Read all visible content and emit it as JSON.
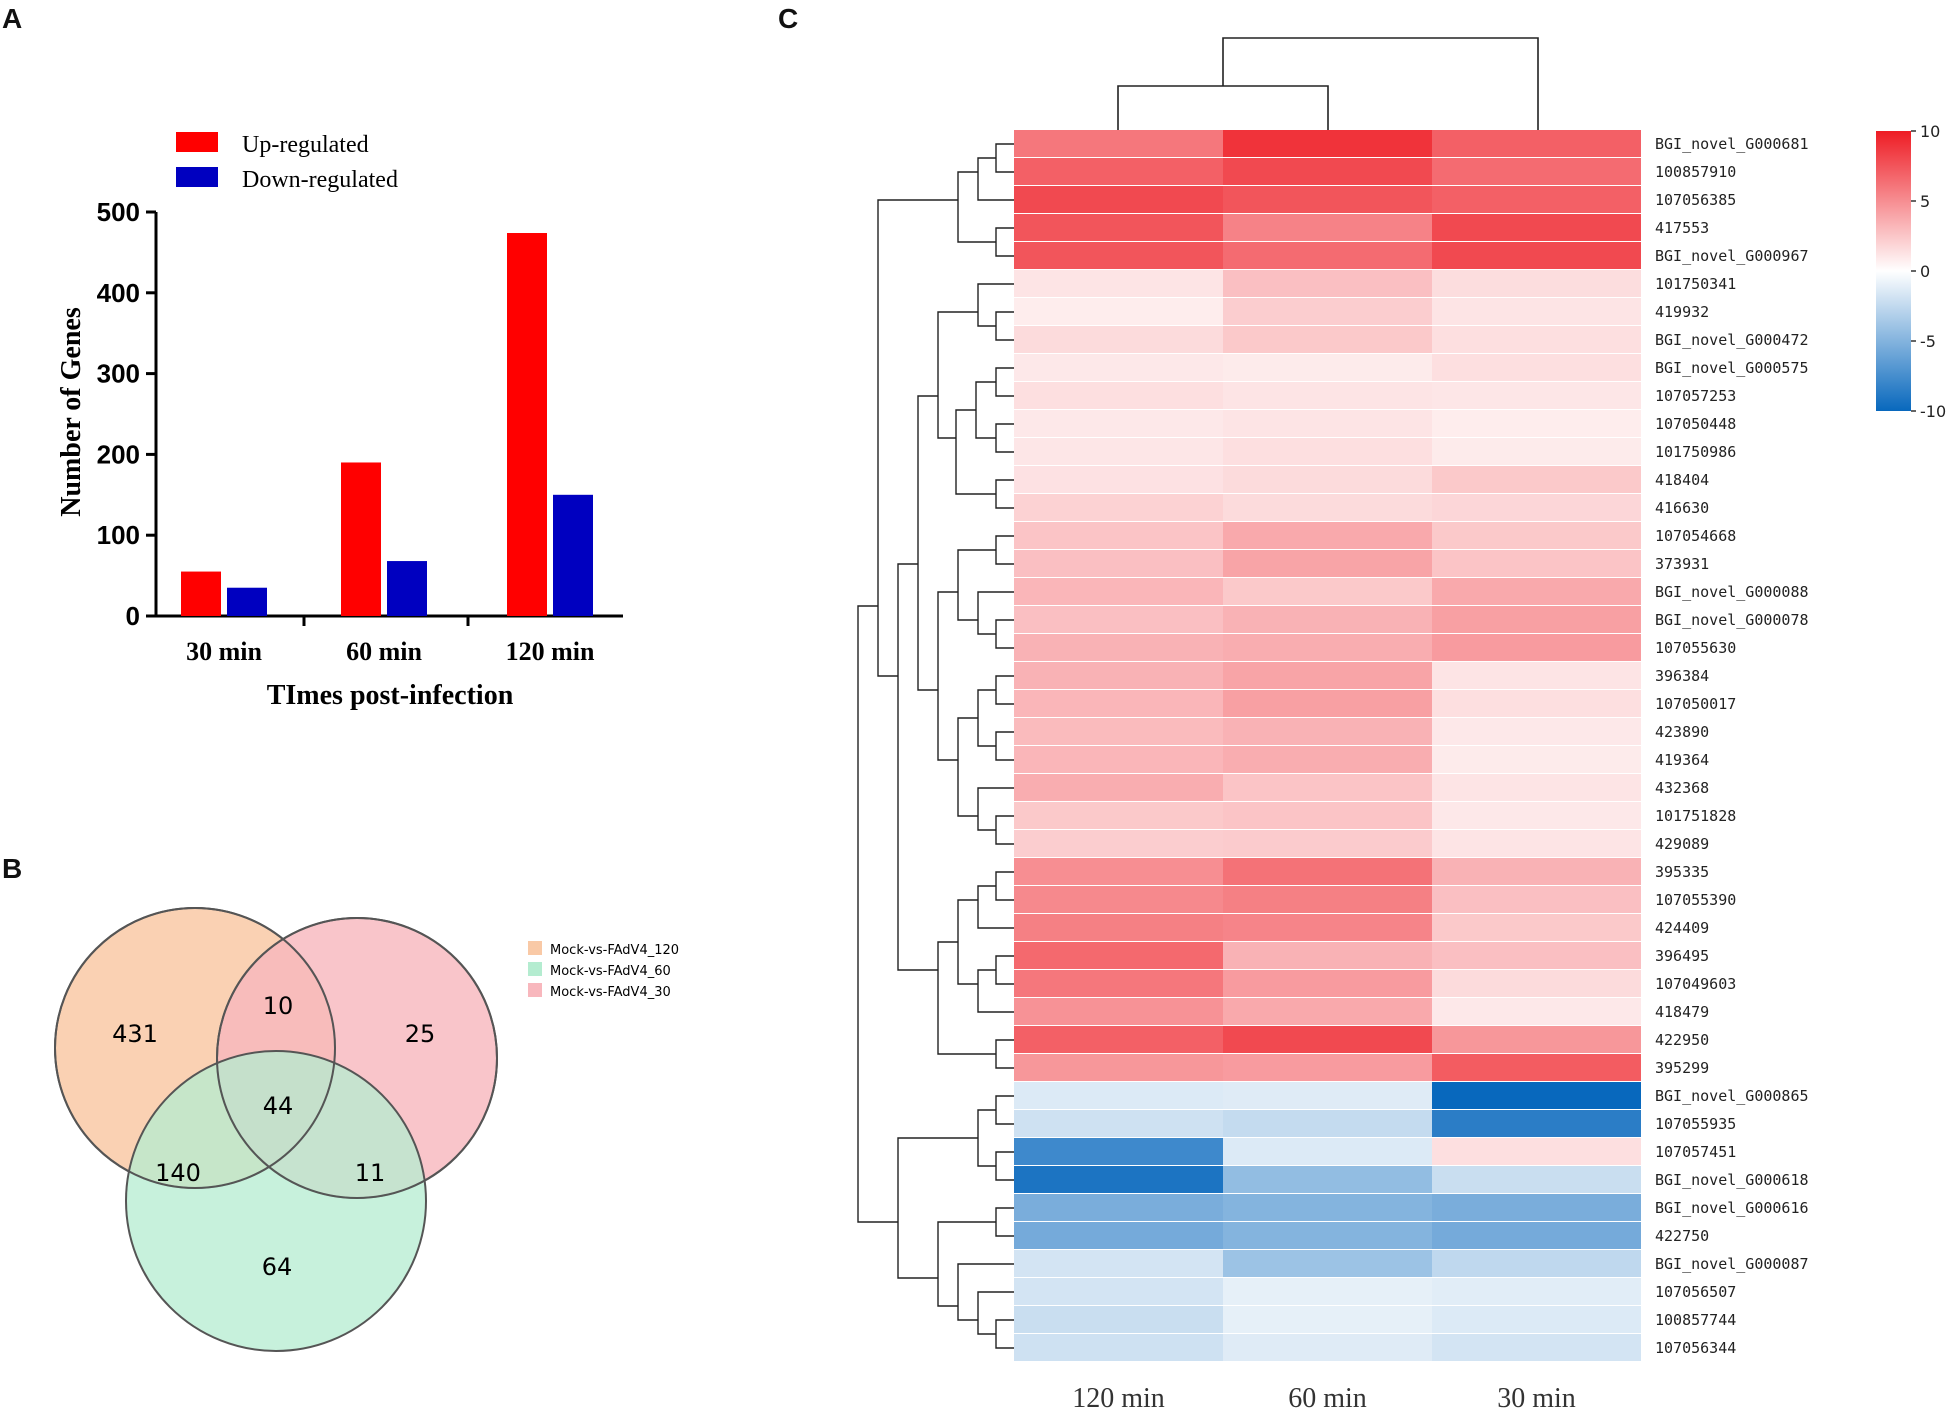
{
  "panels": {
    "a_label": "A",
    "b_label": "B",
    "c_label": "C"
  },
  "chart_data": [
    {
      "type": "bar",
      "panel": "A",
      "categories": [
        "30 min",
        "60 min",
        "120 min"
      ],
      "series": [
        {
          "name": "Up-regulated",
          "color": "#ff0000",
          "values": [
            55,
            190,
            474
          ]
        },
        {
          "name": "Down-regulated",
          "color": "#0000c0",
          "values": [
            35,
            68,
            150
          ]
        }
      ],
      "xlabel": "TImes post-infection",
      "ylabel": "Number of Genes",
      "ylim": [
        0,
        500
      ],
      "yticks": [
        0,
        100,
        200,
        300,
        400,
        500
      ],
      "legend_position": "top-left"
    },
    {
      "type": "venn",
      "panel": "B",
      "sets": [
        {
          "name": "Mock-vs-FAdV4_120",
          "color": "#f9c9a6"
        },
        {
          "name": "Mock-vs-FAdV4_60",
          "color": "#b4ecd0"
        },
        {
          "name": "Mock-vs-FAdV4_30",
          "color": "#f8b7bd"
        }
      ],
      "regions": {
        "only_120": 431,
        "only_30": 25,
        "only_60": 64,
        "120_30": 10,
        "120_60": 140,
        "60_30": 11,
        "all": 44
      }
    },
    {
      "type": "heatmap",
      "panel": "C",
      "columns": [
        "120 min",
        "60 min",
        "30 min"
      ],
      "colorbar": {
        "ticks": [
          "10",
          "5",
          "0",
          "-5",
          "-10"
        ],
        "min": -10,
        "max": 10
      },
      "rows": [
        {
          "gene": "BGI_novel_G000681",
          "values": [
            6,
            9,
            7
          ]
        },
        {
          "gene": "100857910",
          "values": [
            7,
            8,
            6.5
          ]
        },
        {
          "gene": "107056385",
          "values": [
            8,
            7.5,
            7
          ]
        },
        {
          "gene": "417553",
          "values": [
            7.5,
            5.5,
            8
          ]
        },
        {
          "gene": "BGI_novel_G000967",
          "values": [
            7.5,
            6.5,
            8
          ]
        },
        {
          "gene": "101750341",
          "values": [
            1.2,
            2.8,
            1.5
          ]
        },
        {
          "gene": "419932",
          "values": [
            0.8,
            2.2,
            1.2
          ]
        },
        {
          "gene": "BGI_novel_G000472",
          "values": [
            1.6,
            2.4,
            1.4
          ]
        },
        {
          "gene": "BGI_novel_G000575",
          "values": [
            1.0,
            0.9,
            1.4
          ]
        },
        {
          "gene": "107057253",
          "values": [
            1.4,
            1.2,
            1.1
          ]
        },
        {
          "gene": "107050448",
          "values": [
            1.0,
            1.2,
            0.8
          ]
        },
        {
          "gene": "101750986",
          "values": [
            1.1,
            1.4,
            0.9
          ]
        },
        {
          "gene": "418404",
          "values": [
            1.3,
            1.6,
            2.4
          ]
        },
        {
          "gene": "416630",
          "values": [
            2.0,
            1.6,
            1.8
          ]
        },
        {
          "gene": "107054668",
          "values": [
            2.6,
            3.8,
            2.4
          ]
        },
        {
          "gene": "373931",
          "values": [
            2.8,
            4.0,
            2.6
          ]
        },
        {
          "gene": "BGI_novel_G000088",
          "values": [
            3.2,
            2.4,
            3.8
          ]
        },
        {
          "gene": "BGI_novel_G000078",
          "values": [
            2.8,
            3.4,
            4.2
          ]
        },
        {
          "gene": "107055630",
          "values": [
            3.4,
            3.6,
            4.4
          ]
        },
        {
          "gene": "396384",
          "values": [
            3.4,
            4.0,
            1.2
          ]
        },
        {
          "gene": "107050017",
          "values": [
            3.2,
            4.2,
            1.4
          ]
        },
        {
          "gene": "423890",
          "values": [
            3.0,
            3.4,
            1.0
          ]
        },
        {
          "gene": "419364",
          "values": [
            3.2,
            3.6,
            0.9
          ]
        },
        {
          "gene": "432368",
          "values": [
            3.6,
            2.6,
            1.2
          ]
        },
        {
          "gene": "101751828",
          "values": [
            2.4,
            2.6,
            1.0
          ]
        },
        {
          "gene": "429089",
          "values": [
            2.2,
            2.3,
            1.2
          ]
        },
        {
          "gene": "395335",
          "values": [
            5.0,
            6.2,
            3.4
          ]
        },
        {
          "gene": "107055390",
          "values": [
            5.2,
            5.6,
            2.8
          ]
        },
        {
          "gene": "424409",
          "values": [
            5.6,
            5.4,
            2.4
          ]
        },
        {
          "gene": "396495",
          "values": [
            6.6,
            3.4,
            2.8
          ]
        },
        {
          "gene": "107049603",
          "values": [
            6.0,
            4.4,
            1.6
          ]
        },
        {
          "gene": "418479",
          "values": [
            4.8,
            3.8,
            1.0
          ]
        },
        {
          "gene": "422950",
          "values": [
            7.0,
            8.0,
            4.6
          ]
        },
        {
          "gene": "395299",
          "values": [
            4.6,
            4.4,
            7.2
          ]
        },
        {
          "gene": "BGI_novel_G000865",
          "values": [
            -1.4,
            -1.3,
            -10
          ]
        },
        {
          "gene": "107055935",
          "values": [
            -2.0,
            -2.4,
            -8.6
          ]
        },
        {
          "gene": "107057451",
          "values": [
            -7.8,
            -1.4,
            1.4
          ]
        },
        {
          "gene": "BGI_novel_G000618",
          "values": [
            -9.2,
            -4.4,
            -2.2
          ]
        },
        {
          "gene": "BGI_novel_G000616",
          "values": [
            -5.4,
            -5.0,
            -5.4
          ]
        },
        {
          "gene": "422750",
          "values": [
            -5.6,
            -5.0,
            -5.6
          ]
        },
        {
          "gene": "BGI_novel_G000087",
          "values": [
            -1.8,
            -4.0,
            -2.6
          ]
        },
        {
          "gene": "107056507",
          "values": [
            -1.8,
            -1.0,
            -1.2
          ]
        },
        {
          "gene": "100857744",
          "values": [
            -2.2,
            -1.0,
            -1.4
          ]
        },
        {
          "gene": "107056344",
          "values": [
            -2.0,
            -1.3,
            -1.8
          ]
        }
      ]
    }
  ]
}
